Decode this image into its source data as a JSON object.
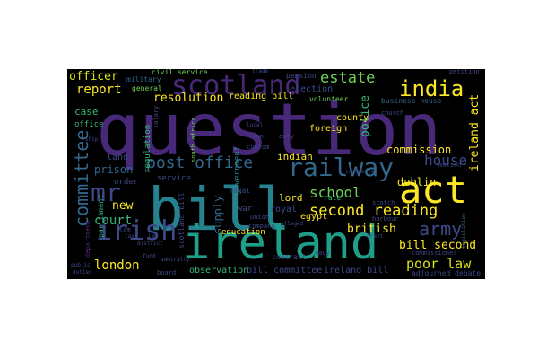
{
  "words": {
    "question": "question",
    "bill": "bill",
    "ireland": "ireland",
    "irish": "irish",
    "act": "act",
    "scotland": "scotland",
    "india": "india",
    "railway": "railway",
    "mr": "mr",
    "post_office": "post office",
    "second_reading": "second reading",
    "army": "army",
    "committee": "committee",
    "british": "british",
    "estate": "estate",
    "report": "report",
    "school": "school",
    "house": "house",
    "poor_law": "poor law",
    "london": "london",
    "resolution": "resolution",
    "court": "court",
    "prison": "prison",
    "commission": "commission",
    "dublin": "dublin",
    "bill_second": "bill second",
    "ireland_act": "ireland act",
    "officer": "officer",
    "reading_bill": "reading bill",
    "police": "police",
    "new": "new",
    "case": "case",
    "indian": "indian",
    "county": "county",
    "supply": "supply",
    "election": "election",
    "foreign": "foreign",
    "land": "land",
    "egypt": "egypt",
    "ireland_bill": "ireland bill",
    "bill_committee": "bill committee",
    "observation": "observation",
    "education": "education",
    "lord": "lord",
    "royal": "royal",
    "order": "order",
    "service": "service",
    "military": "military",
    "civil_service": "civil service",
    "general": "general",
    "office": "office",
    "pension": "pension",
    "trade": "trade",
    "volunteer": "volunteer",
    "business_house": "business house",
    "church": "church",
    "petition": "petition",
    "rate": "rate",
    "scotch": "scotch",
    "harbour": "harbour",
    "contract": "contract",
    "naval": "naval",
    "navy": "navy",
    "loan": "loan",
    "duty": "duty",
    "custom": "custom",
    "regulation": "regulation",
    "south_africa": "south africa",
    "government": "government",
    "war": "war",
    "company": "company",
    "union": "union",
    "motion": "motion",
    "adjourned_debate": "adjourned debate",
    "commissioner": "commissioner",
    "public": "public",
    "duties": "duties",
    "board": "board",
    "scotland_bill": "scotland bill",
    "parliament": "parliament",
    "alleged": "alleged",
    "admiralty": "admiralty",
    "lam": "lam",
    "tax": "tax",
    "ship": "ship",
    "grant": "grant",
    "income_tax": "income tax",
    "fund": "fund",
    "department": "department",
    "district": "district",
    "legislation": "legislation",
    "law": "law",
    "local": "local",
    "salary": "salary"
  },
  "colors": {
    "purple": "#482878",
    "indigo": "#3e4989",
    "blue": "#31688e",
    "teal": "#26828e",
    "green": "#1f9e89",
    "mint": "#35b779",
    "lime": "#6ece58",
    "yellow": "#fde725",
    "yellow2": "#d8e219",
    "background": "#000000"
  }
}
